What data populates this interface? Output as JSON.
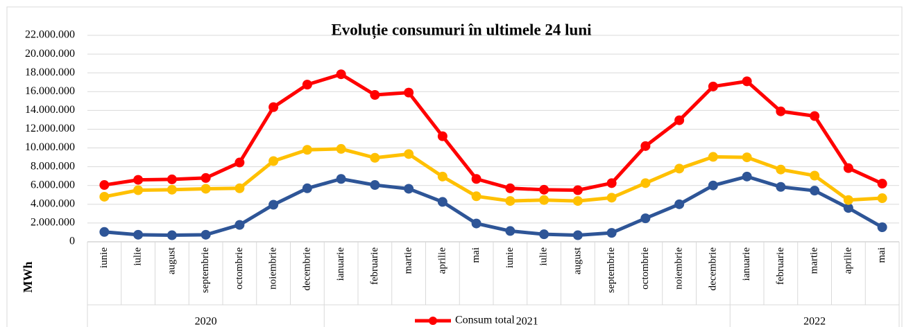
{
  "chart_data": {
    "type": "line",
    "title": "Evoluție consumuri în ultimele 24 luni",
    "y_label": "MWh",
    "categories": [
      "iunie",
      "iulie",
      "august",
      "septembrie",
      "octombrie",
      "noiembrie",
      "decembrie",
      "ianuarie",
      "februarie",
      "martie",
      "aprilie",
      "mai",
      "iunie",
      "iulie",
      "august",
      "septembrie",
      "octombrie",
      "noiembrie",
      "decembrie",
      "ianuarie",
      "februarie",
      "martie",
      "aprilie",
      "mai"
    ],
    "year_groups": [
      {
        "label": "2020",
        "span": 7
      },
      {
        "label": "2021",
        "span": 12
      },
      {
        "label": "2022",
        "span": 5
      }
    ],
    "series": [
      {
        "color": "#2e5597",
        "values": [
          1050000,
          750000,
          700000,
          750000,
          1800000,
          3950000,
          5700000,
          6700000,
          6050000,
          5650000,
          4250000,
          1950000,
          1150000,
          800000,
          700000,
          950000,
          2500000,
          4000000,
          6000000,
          6950000,
          5850000,
          5450000,
          3600000,
          1550000
        ]
      },
      {
        "color": "#ffc000",
        "values": [
          4800000,
          5500000,
          5550000,
          5650000,
          5700000,
          8600000,
          9800000,
          9900000,
          8950000,
          9350000,
          6950000,
          4850000,
          4350000,
          4450000,
          4350000,
          4700000,
          6250000,
          7800000,
          9050000,
          9000000,
          7700000,
          7050000,
          4450000,
          4650000
        ]
      },
      {
        "name": "Consum total",
        "color": "#ff0000",
        "values": [
          6050000,
          6600000,
          6650000,
          6800000,
          8450000,
          14350000,
          16750000,
          17850000,
          15650000,
          15900000,
          11250000,
          6700000,
          5700000,
          5550000,
          5500000,
          6250000,
          10200000,
          12950000,
          16550000,
          17100000,
          13900000,
          13400000,
          7850000,
          6200000
        ]
      }
    ],
    "ylim": [
      0,
      22000000
    ],
    "yticks": [
      0,
      {
        "value": 2000000,
        "label": "2.000.000"
      },
      {
        "value": 4000000,
        "label": "4.000.000"
      },
      {
        "value": 6000000,
        "label": "6.000.000"
      },
      {
        "value": 8000000,
        "label": "8.000.000"
      },
      {
        "value": 10000000,
        "label": "10.000.000"
      },
      {
        "value": 12000000,
        "label": "12.000.000"
      },
      {
        "value": 14000000,
        "label": "14.000.000"
      },
      {
        "value": 16000000,
        "label": "16.000.000"
      },
      {
        "value": 18000000,
        "label": "18.000.000"
      },
      {
        "value": 20000000,
        "label": "20.000.000"
      },
      {
        "value": 22000000,
        "label": "22.000.000"
      }
    ],
    "grid": true,
    "legend": "bottom"
  }
}
